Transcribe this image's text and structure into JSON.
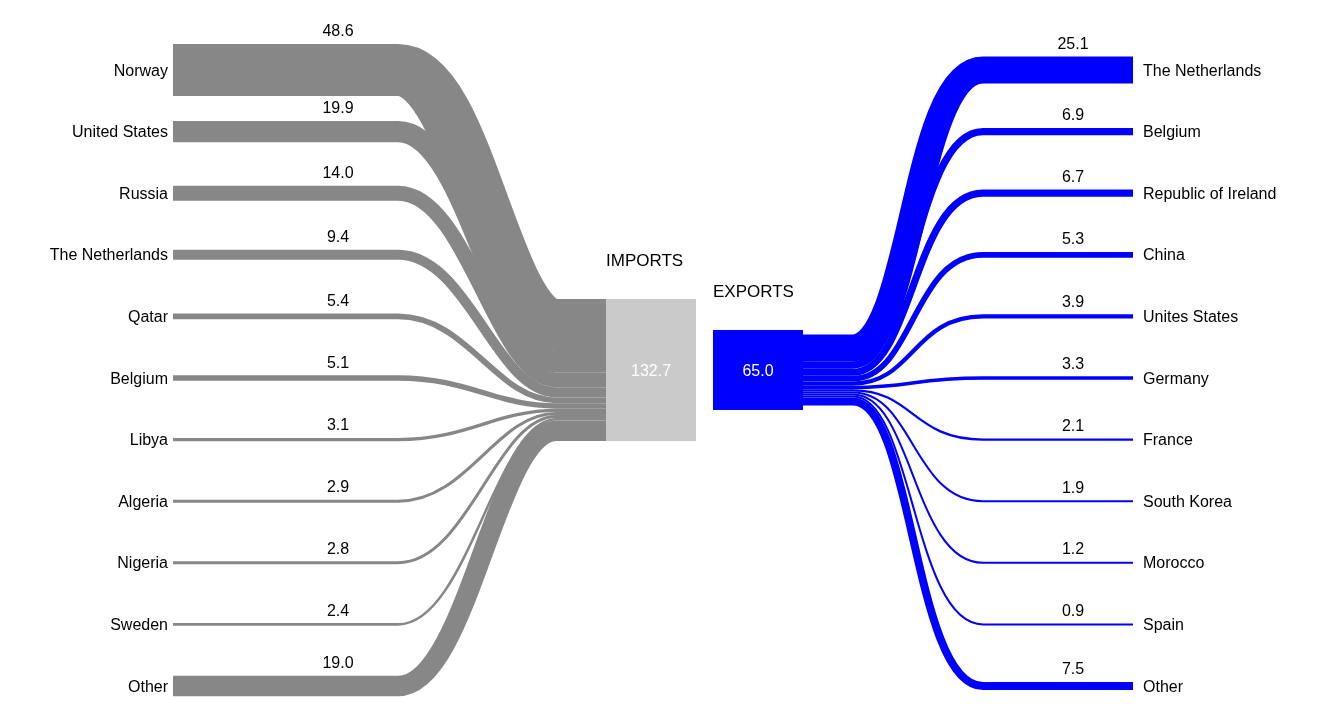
{
  "chart_data": [
    {
      "type": "other",
      "title": "IMPORTS",
      "categories": [
        "Norway",
        "United States",
        "Russia",
        "The Netherlands",
        "Qatar",
        "Belgium",
        "Libya",
        "Algeria",
        "Nigeria",
        "Sweden",
        "Other"
      ],
      "values": [
        48.6,
        19.9,
        14.0,
        9.4,
        5.4,
        5.1,
        3.1,
        2.9,
        2.8,
        2.4,
        19.0
      ],
      "value_labels": [
        "48.6",
        "19.9",
        "14.0",
        "9.4",
        "5.4",
        "5.1",
        "3.1",
        "2.9",
        "2.8",
        "2.4",
        "19.0"
      ],
      "color": "#878787",
      "totals": [
        "132.7"
      ]
    },
    {
      "type": "other",
      "title": "EXPORTS",
      "categories": [
        "The Netherlands",
        "Belgium",
        "Republic of Ireland",
        "China",
        "Unites States",
        "Germany",
        "France",
        "South Korea",
        "Morocco",
        "Spain",
        "Other"
      ],
      "values": [
        25.1,
        6.9,
        6.7,
        5.3,
        3.9,
        3.3,
        2.1,
        1.9,
        1.2,
        0.9,
        7.5
      ],
      "value_labels": [
        "25.1",
        "6.9",
        "6.7",
        "5.3",
        "3.9",
        "3.3",
        "2.1",
        "1.9",
        "1.2",
        "0.9",
        "7.5"
      ],
      "color": "#0000ff",
      "totals": [
        "65.0"
      ]
    }
  ]
}
